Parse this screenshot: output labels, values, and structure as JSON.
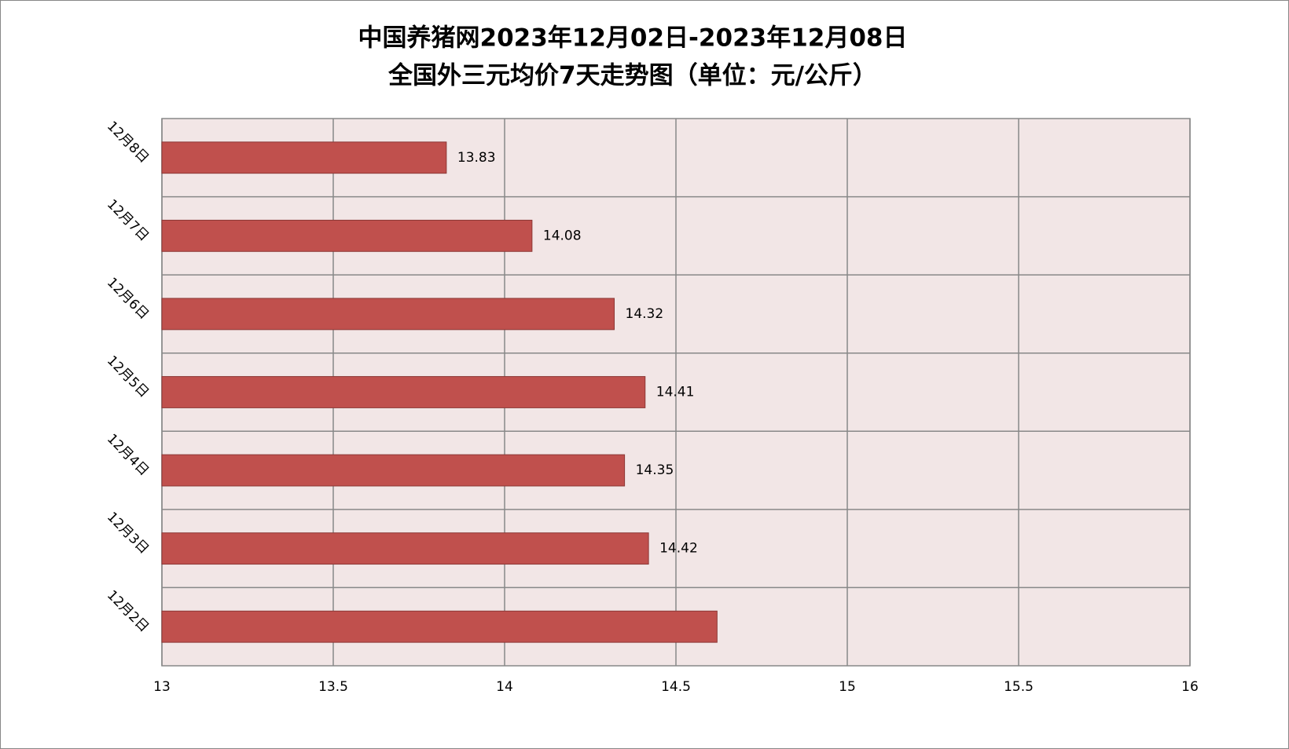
{
  "chart_data": {
    "type": "bar",
    "orientation": "horizontal",
    "title": [
      "中国养猪网2023年12月02日-2023年12月08日",
      "全国外三元均价7天走势图（单位：元/公斤）"
    ],
    "categories": [
      "12月2日",
      "12月3日",
      "12月4日",
      "12月5日",
      "12月6日",
      "12月7日",
      "12月8日"
    ],
    "values": [
      14.62,
      14.42,
      14.35,
      14.41,
      14.32,
      14.08,
      13.83
    ],
    "value_labels": [
      null,
      "14.42",
      "14.35",
      "14.41",
      "14.32",
      "14.08",
      "13.83"
    ],
    "color": "#c0504d",
    "xlim": [
      13,
      16
    ],
    "xticks": [
      13,
      13.5,
      14,
      14.5,
      15,
      15.5,
      16
    ],
    "grid": true
  }
}
